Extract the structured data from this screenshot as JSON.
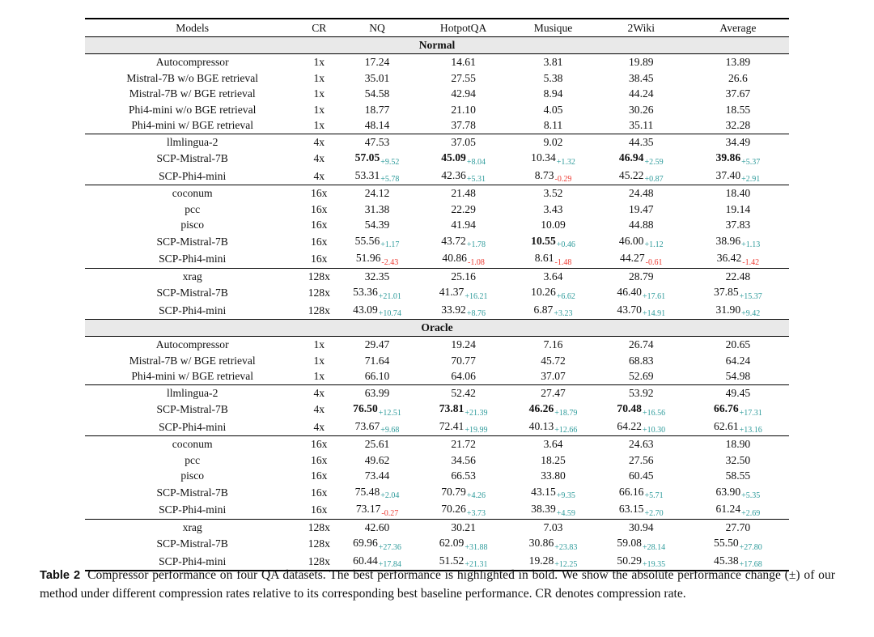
{
  "colors": {
    "positive_delta": "#2E9B9B",
    "negative_delta": "#ED3B32",
    "band_background": "#E9E9E9",
    "rule": "#000000"
  },
  "table": {
    "columns": [
      "Models",
      "CR",
      "NQ",
      "HotpotQA",
      "Musique",
      "2Wiki",
      "Average"
    ],
    "sections": [
      {
        "name": "Normal",
        "groups": [
          [
            {
              "model": "Autocompressor",
              "cr": "1x",
              "cells": [
                {
                  "v": "17.24"
                },
                {
                  "v": "14.61"
                },
                {
                  "v": "3.81"
                },
                {
                  "v": "19.89"
                },
                {
                  "v": "13.89"
                }
              ]
            },
            {
              "model": "Mistral-7B w/o BGE retrieval",
              "cr": "1x",
              "cells": [
                {
                  "v": "35.01"
                },
                {
                  "v": "27.55"
                },
                {
                  "v": "5.38"
                },
                {
                  "v": "38.45"
                },
                {
                  "v": "26.6"
                }
              ]
            },
            {
              "model": "Mistral-7B w/ BGE retrieval",
              "cr": "1x",
              "cells": [
                {
                  "v": "54.58"
                },
                {
                  "v": "42.94"
                },
                {
                  "v": "8.94"
                },
                {
                  "v": "44.24"
                },
                {
                  "v": "37.67"
                }
              ]
            },
            {
              "model": "Phi4-mini w/o BGE retrieval",
              "cr": "1x",
              "cells": [
                {
                  "v": "18.77"
                },
                {
                  "v": "21.10"
                },
                {
                  "v": "4.05"
                },
                {
                  "v": "30.26"
                },
                {
                  "v": "18.55"
                }
              ]
            },
            {
              "model": "Phi4-mini w/ BGE retrieval",
              "cr": "1x",
              "cells": [
                {
                  "v": "48.14"
                },
                {
                  "v": "37.78"
                },
                {
                  "v": "8.11"
                },
                {
                  "v": "35.11"
                },
                {
                  "v": "32.28"
                }
              ]
            }
          ],
          [
            {
              "model": "llmlingua-2",
              "cr": "4x",
              "cells": [
                {
                  "v": "47.53"
                },
                {
                  "v": "37.05"
                },
                {
                  "v": "9.02"
                },
                {
                  "v": "44.35"
                },
                {
                  "v": "34.49"
                }
              ]
            },
            {
              "model": "SCP-Mistral-7B",
              "cr": "4x",
              "cells": [
                {
                  "v": "57.05",
                  "d": "+9.52",
                  "b": true
                },
                {
                  "v": "45.09",
                  "d": "+8.04",
                  "b": true
                },
                {
                  "v": "10.34",
                  "d": "+1.32"
                },
                {
                  "v": "46.94",
                  "d": "+2.59",
                  "b": true
                },
                {
                  "v": "39.86",
                  "d": "+5.37",
                  "b": true
                }
              ]
            },
            {
              "model": "SCP-Phi4-mini",
              "cr": "4x",
              "cells": [
                {
                  "v": "53.31",
                  "d": "+5.78"
                },
                {
                  "v": "42.36",
                  "d": "+5.31"
                },
                {
                  "v": "8.73",
                  "d": "-0.29"
                },
                {
                  "v": "45.22",
                  "d": "+0.87"
                },
                {
                  "v": "37.40",
                  "d": "+2.91"
                }
              ]
            }
          ],
          [
            {
              "model": "coconum",
              "cr": "16x",
              "cells": [
                {
                  "v": "24.12"
                },
                {
                  "v": "21.48"
                },
                {
                  "v": "3.52"
                },
                {
                  "v": "24.48"
                },
                {
                  "v": "18.40"
                }
              ]
            },
            {
              "model": "pcc",
              "cr": "16x",
              "cells": [
                {
                  "v": "31.38"
                },
                {
                  "v": "22.29"
                },
                {
                  "v": "3.43"
                },
                {
                  "v": "19.47"
                },
                {
                  "v": "19.14"
                }
              ]
            },
            {
              "model": "pisco",
              "cr": "16x",
              "cells": [
                {
                  "v": "54.39"
                },
                {
                  "v": "41.94"
                },
                {
                  "v": "10.09"
                },
                {
                  "v": "44.88"
                },
                {
                  "v": "37.83"
                }
              ]
            },
            {
              "model": "SCP-Mistral-7B",
              "cr": "16x",
              "cells": [
                {
                  "v": "55.56",
                  "d": "+1.17"
                },
                {
                  "v": "43.72",
                  "d": "+1.78"
                },
                {
                  "v": "10.55",
                  "d": "+0.46",
                  "b": true
                },
                {
                  "v": "46.00",
                  "d": "+1.12"
                },
                {
                  "v": "38.96",
                  "d": "+1.13"
                }
              ]
            },
            {
              "model": "SCP-Phi4-mini",
              "cr": "16x",
              "cells": [
                {
                  "v": "51.96",
                  "d": "-2.43"
                },
                {
                  "v": "40.86",
                  "d": "-1.08"
                },
                {
                  "v": "8.61",
                  "d": "-1.48"
                },
                {
                  "v": "44.27",
                  "d": "-0.61"
                },
                {
                  "v": "36.42",
                  "d": "-1.42"
                }
              ]
            }
          ],
          [
            {
              "model": "xrag",
              "cr": "128x",
              "cells": [
                {
                  "v": "32.35"
                },
                {
                  "v": "25.16"
                },
                {
                  "v": "3.64"
                },
                {
                  "v": "28.79"
                },
                {
                  "v": "22.48"
                }
              ]
            },
            {
              "model": "SCP-Mistral-7B",
              "cr": "128x",
              "cells": [
                {
                  "v": "53.36",
                  "d": "+21.01"
                },
                {
                  "v": "41.37",
                  "d": "+16.21"
                },
                {
                  "v": "10.26",
                  "d": "+6.62"
                },
                {
                  "v": "46.40",
                  "d": "+17.61"
                },
                {
                  "v": "37.85",
                  "d": "+15.37"
                }
              ]
            },
            {
              "model": "SCP-Phi4-mini",
              "cr": "128x",
              "cells": [
                {
                  "v": "43.09",
                  "d": "+10.74"
                },
                {
                  "v": "33.92",
                  "d": "+8.76"
                },
                {
                  "v": "6.87",
                  "d": "+3.23"
                },
                {
                  "v": "43.70",
                  "d": "+14.91"
                },
                {
                  "v": "31.90",
                  "d": "+9.42"
                }
              ]
            }
          ]
        ]
      },
      {
        "name": "Oracle",
        "groups": [
          [
            {
              "model": "Autocompressor",
              "cr": "1x",
              "cells": [
                {
                  "v": "29.47"
                },
                {
                  "v": "19.24"
                },
                {
                  "v": "7.16"
                },
                {
                  "v": "26.74"
                },
                {
                  "v": "20.65"
                }
              ]
            },
            {
              "model": "Mistral-7B w/ BGE retrieval",
              "cr": "1x",
              "cells": [
                {
                  "v": "71.64"
                },
                {
                  "v": "70.77"
                },
                {
                  "v": "45.72"
                },
                {
                  "v": "68.83"
                },
                {
                  "v": "64.24"
                }
              ]
            },
            {
              "model": "Phi4-mini w/ BGE retrieval",
              "cr": "1x",
              "cells": [
                {
                  "v": "66.10"
                },
                {
                  "v": "64.06"
                },
                {
                  "v": "37.07"
                },
                {
                  "v": "52.69"
                },
                {
                  "v": "54.98"
                }
              ]
            }
          ],
          [
            {
              "model": "llmlingua-2",
              "cr": "4x",
              "cells": [
                {
                  "v": "63.99"
                },
                {
                  "v": "52.42"
                },
                {
                  "v": "27.47"
                },
                {
                  "v": "53.92"
                },
                {
                  "v": "49.45"
                }
              ]
            },
            {
              "model": "SCP-Mistral-7B",
              "cr": "4x",
              "cells": [
                {
                  "v": "76.50",
                  "d": "+12.51",
                  "b": true
                },
                {
                  "v": "73.81",
                  "d": "+21.39",
                  "b": true
                },
                {
                  "v": "46.26",
                  "d": "+18.79",
                  "b": true
                },
                {
                  "v": "70.48",
                  "d": "+16.56",
                  "b": true
                },
                {
                  "v": "66.76",
                  "d": "+17.31",
                  "b": true
                }
              ]
            },
            {
              "model": "SCP-Phi4-mini",
              "cr": "4x",
              "cells": [
                {
                  "v": "73.67",
                  "d": "+9.68"
                },
                {
                  "v": "72.41",
                  "d": "+19.99"
                },
                {
                  "v": "40.13",
                  "d": "+12.66"
                },
                {
                  "v": "64.22",
                  "d": "+10.30"
                },
                {
                  "v": "62.61",
                  "d": "+13.16"
                }
              ]
            }
          ],
          [
            {
              "model": "coconum",
              "cr": "16x",
              "cells": [
                {
                  "v": "25.61"
                },
                {
                  "v": "21.72"
                },
                {
                  "v": "3.64"
                },
                {
                  "v": "24.63"
                },
                {
                  "v": "18.90"
                }
              ]
            },
            {
              "model": "pcc",
              "cr": "16x",
              "cells": [
                {
                  "v": "49.62"
                },
                {
                  "v": "34.56"
                },
                {
                  "v": "18.25"
                },
                {
                  "v": "27.56"
                },
                {
                  "v": "32.50"
                }
              ]
            },
            {
              "model": "pisco",
              "cr": "16x",
              "cells": [
                {
                  "v": "73.44"
                },
                {
                  "v": "66.53"
                },
                {
                  "v": "33.80"
                },
                {
                  "v": "60.45"
                },
                {
                  "v": "58.55"
                }
              ]
            },
            {
              "model": "SCP-Mistral-7B",
              "cr": "16x",
              "cells": [
                {
                  "v": "75.48",
                  "d": "+2.04"
                },
                {
                  "v": "70.79",
                  "d": "+4.26"
                },
                {
                  "v": "43.15",
                  "d": "+9.35"
                },
                {
                  "v": "66.16",
                  "d": "+5.71"
                },
                {
                  "v": "63.90",
                  "d": "+5.35"
                }
              ]
            },
            {
              "model": "SCP-Phi4-mini",
              "cr": "16x",
              "cells": [
                {
                  "v": "73.17",
                  "d": "-0.27"
                },
                {
                  "v": "70.26",
                  "d": "+3.73"
                },
                {
                  "v": "38.39",
                  "d": "+4.59"
                },
                {
                  "v": "63.15",
                  "d": "+2.70"
                },
                {
                  "v": "61.24",
                  "d": "+2.69"
                }
              ]
            }
          ],
          [
            {
              "model": "xrag",
              "cr": "128x",
              "cells": [
                {
                  "v": "42.60"
                },
                {
                  "v": "30.21"
                },
                {
                  "v": "7.03"
                },
                {
                  "v": "30.94"
                },
                {
                  "v": "27.70"
                }
              ]
            },
            {
              "model": "SCP-Mistral-7B",
              "cr": "128x",
              "cells": [
                {
                  "v": "69.96",
                  "d": "+27.36"
                },
                {
                  "v": "62.09",
                  "d": "+31.88"
                },
                {
                  "v": "30.86",
                  "d": "+23.83"
                },
                {
                  "v": "59.08",
                  "d": "+28.14"
                },
                {
                  "v": "55.50",
                  "d": "+27.80"
                }
              ]
            },
            {
              "model": "SCP-Phi4-mini",
              "cr": "128x",
              "cells": [
                {
                  "v": "60.44",
                  "d": "+17.84"
                },
                {
                  "v": "51.52",
                  "d": "+21.31"
                },
                {
                  "v": "19.28",
                  "d": "+12.25"
                },
                {
                  "v": "50.29",
                  "d": "+19.35"
                },
                {
                  "v": "45.38",
                  "d": "+17.68"
                }
              ]
            }
          ]
        ]
      }
    ]
  },
  "caption": {
    "label": "Table 2",
    "text": "Compressor performance on four QA datasets. The best performance is highlighted in bold. We show the absolute performance change (±) of our method under different compression rates relative to its corresponding best baseline performance. CR denotes compression rate."
  }
}
